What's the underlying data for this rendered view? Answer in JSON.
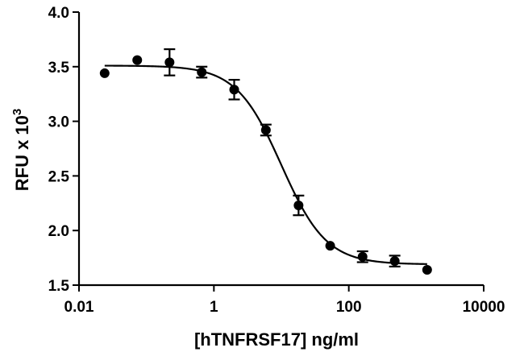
{
  "chart_data": {
    "type": "scatter",
    "title": "",
    "xlabel": "[hTNFRSF17] ng/ml",
    "ylabel": {
      "base": "RFU x 10",
      "exponent": "3"
    },
    "xscale": "log",
    "xlim": [
      0.01,
      10000
    ],
    "ylim": [
      1.5,
      4.0
    ],
    "xticks": [
      0.01,
      1,
      100,
      10000
    ],
    "xtick_labels": [
      "0.01",
      "1",
      "100",
      "10000"
    ],
    "yticks": [
      1.5,
      2.0,
      2.5,
      3.0,
      3.5,
      4.0
    ],
    "ytick_labels": [
      "1.5",
      "2.0",
      "2.5",
      "3.0",
      "3.5",
      "4.0"
    ],
    "grid": false,
    "legend": "none",
    "marker_color": "#000000",
    "series": [
      {
        "x": [
          0.024,
          0.073,
          0.22,
          0.66,
          2.0,
          5.9,
          18,
          53,
          160,
          480,
          1450
        ],
        "y": [
          3.44,
          3.56,
          3.54,
          3.45,
          3.29,
          2.92,
          2.23,
          1.86,
          1.76,
          1.72,
          1.64
        ],
        "yerr": [
          0.0,
          0.0,
          0.12,
          0.05,
          0.09,
          0.05,
          0.09,
          0.0,
          0.05,
          0.05,
          0.0
        ]
      }
    ],
    "fit_curve": {
      "model": "4PL",
      "top": 3.51,
      "bottom": 1.69,
      "ec50": 10.0,
      "hill": 1.3
    }
  }
}
